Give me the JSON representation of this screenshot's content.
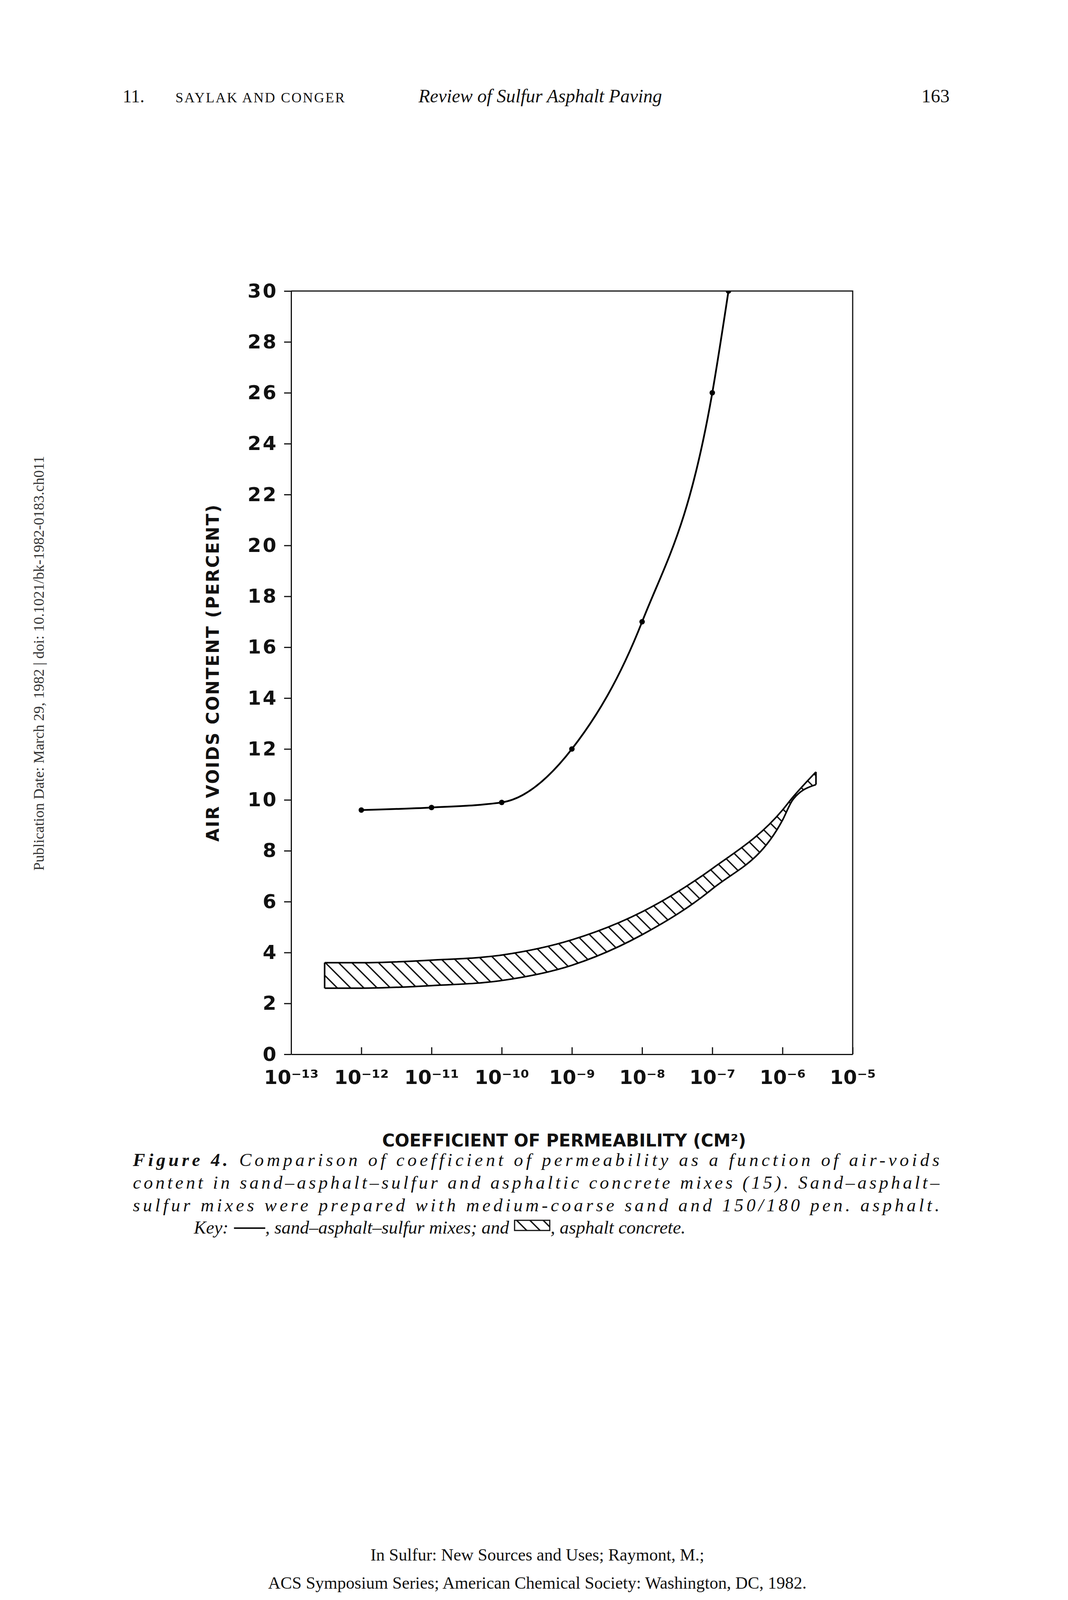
{
  "header": {
    "chapter": "11.",
    "authors": "SAYLAK AND CONGER",
    "title": "Review of Sulfur Asphalt Paving",
    "page": "163"
  },
  "side_note": "Publication Date: March 29, 1982 | doi: 10.1021/bk-1982-0183.ch011",
  "chart_data": {
    "type": "line",
    "x_label": "COEFFICIENT OF PERMEABILITY (CM²)",
    "y_label": "AIR VOIDS CONTENT (PERCENT)",
    "log": "x",
    "grid": false,
    "xlim": [
      1e-13,
      1e-05
    ],
    "ylim": [
      0,
      30
    ],
    "xticks": [
      {
        "value": 1e-13,
        "label": "10⁻¹³"
      },
      {
        "value": 1e-12,
        "label": "10⁻¹²"
      },
      {
        "value": 1e-11,
        "label": "10⁻¹¹"
      },
      {
        "value": 1e-10,
        "label": "10⁻¹⁰"
      },
      {
        "value": 1e-09,
        "label": "10⁻⁹"
      },
      {
        "value": 1e-08,
        "label": "10⁻⁸"
      },
      {
        "value": 1e-07,
        "label": "10⁻⁷"
      },
      {
        "value": 1e-06,
        "label": "10⁻⁶"
      },
      {
        "value": 1e-05,
        "label": "10⁻⁵"
      }
    ],
    "yticks": [
      0,
      2,
      4,
      6,
      8,
      10,
      12,
      14,
      16,
      18,
      20,
      22,
      24,
      26,
      28,
      30
    ],
    "series": [
      {
        "name": "sand–asphalt–sulfur mixes",
        "type": "line",
        "color": "#000000",
        "marker": "circle",
        "line_style": "solid",
        "x": [
          1e-12,
          1e-11,
          1e-10,
          1e-09,
          1e-08,
          1e-07,
          1.7e-07
        ],
        "values": [
          9.6,
          9.7,
          9.9,
          12.0,
          17.0,
          26.0,
          30.0
        ]
      },
      {
        "name": "asphalt concrete",
        "type": "band",
        "color": "#000000",
        "x": [
          3e-13,
          1e-12,
          1e-11,
          1e-10,
          1e-09,
          1e-08,
          1e-07,
          1e-06,
          1.4e-06,
          3e-06
        ],
        "values": [
          3.6,
          3.6,
          3.7,
          3.9,
          4.5,
          5.6,
          7.3,
          9.6,
          10.1,
          11.1
        ],
        "lower": [
          2.6,
          2.6,
          2.7,
          2.9,
          3.5,
          4.7,
          6.5,
          9.2,
          10.0,
          10.6
        ]
      }
    ]
  },
  "caption": {
    "label": "Figure 4.",
    "lines": [
      "Comparison of coefficient of permeability as a function of air-voids",
      "content in sand–asphalt–sulfur and asphaltic concrete mixes (15). Sand–asphalt–",
      "sulfur mixes were prepared with medium-coarse sand and 150/180 pen. asphalt."
    ],
    "key_label": "Key:",
    "key_joins": [
      ", ",
      "; and",
      ", ",
      "."
    ]
  },
  "footer": [
    "In Sulfur: New Sources and Uses; Raymont, M.;",
    "ACS Symposium Series; American Chemical Society: Washington, DC, 1982."
  ]
}
